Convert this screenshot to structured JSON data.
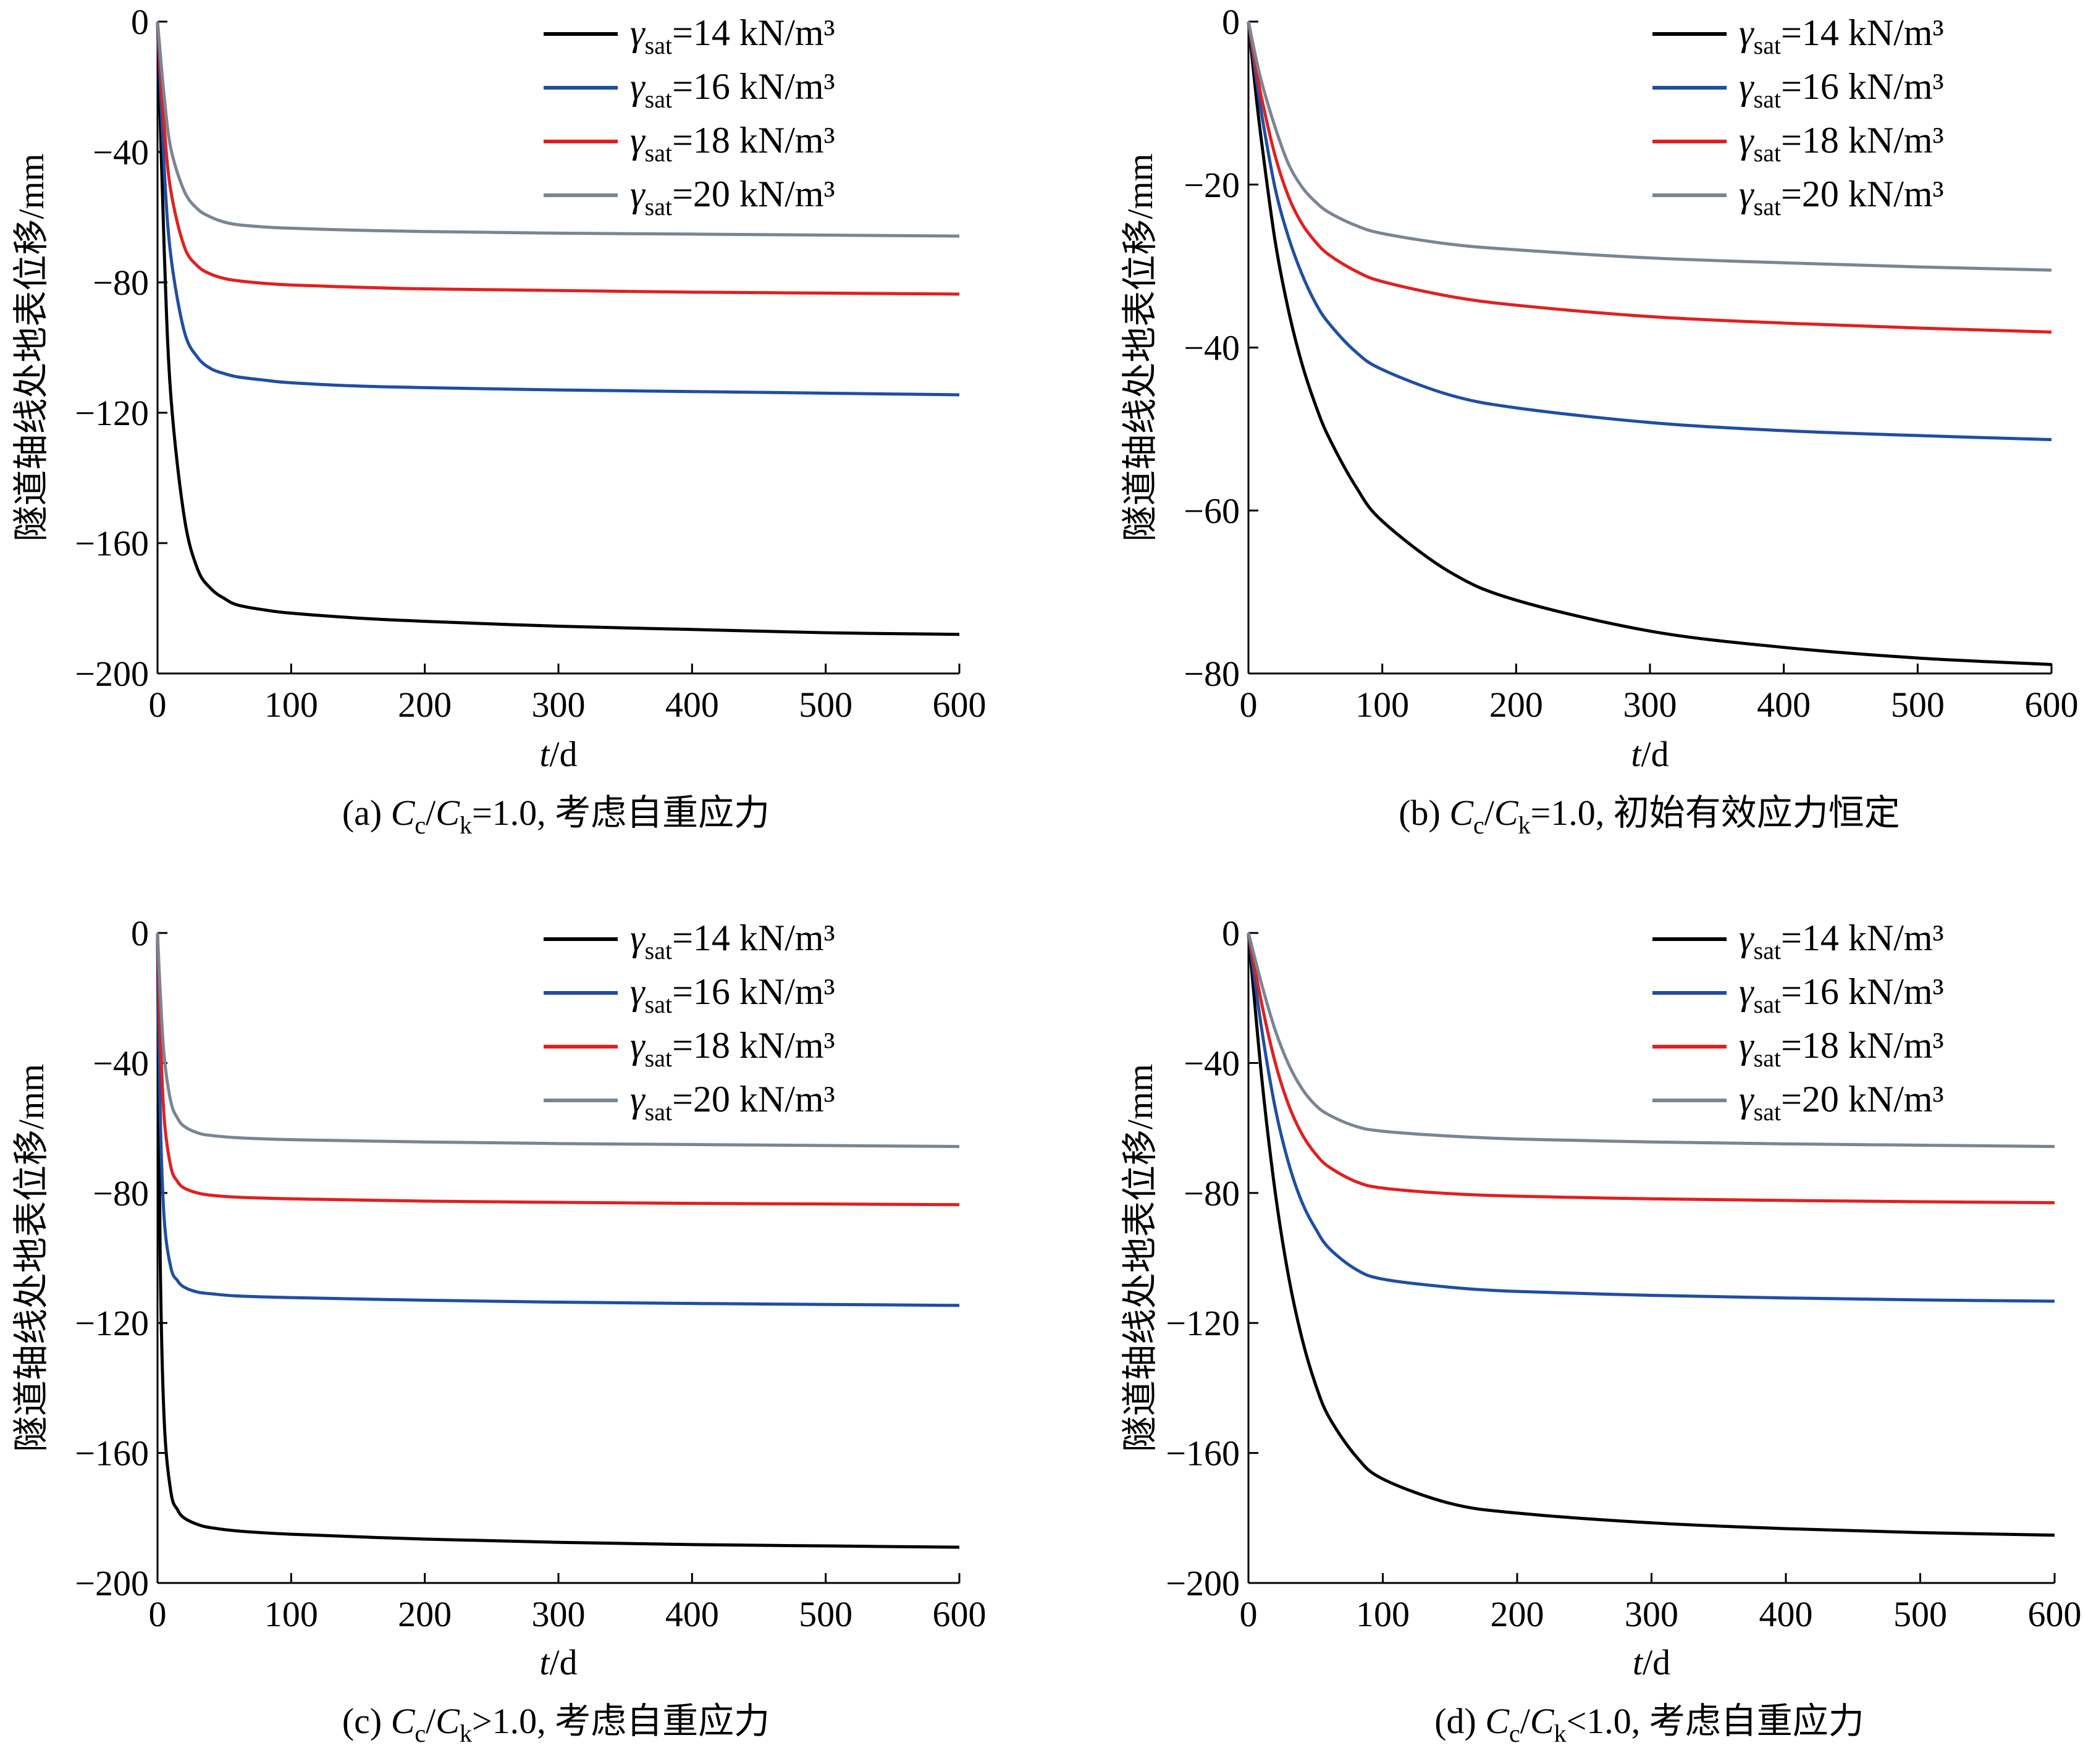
{
  "figure": {
    "title": "",
    "shared_ylabel": "隧道轴线处地表位移/mm",
    "shared_xlabel_var": "t",
    "shared_xlabel_unit": "d",
    "legend": [
      {
        "prefix": "γ",
        "subscript": "sat",
        "label": "=14 kN/m³",
        "color": "#000000"
      },
      {
        "prefix": "γ",
        "subscript": "sat",
        "label": "=16 kN/m³",
        "color": "#1f4ea3"
      },
      {
        "prefix": "γ",
        "subscript": "sat",
        "label": "=18 kN/m³",
        "color": "#e02020"
      },
      {
        "prefix": "γ",
        "subscript": "sat",
        "label": "=20 kN/m³",
        "color": "#7a8594"
      }
    ]
  },
  "chart_data": [
    {
      "type": "line",
      "panel": "a",
      "caption_prefix": "(a)",
      "caption_ratio": "=1.0,",
      "caption_text": "考虑自重应力",
      "xlabel": "t/d",
      "ylabel": "隧道轴线处地表位移/mm",
      "xlim": [
        0,
        600
      ],
      "ylim": [
        -200,
        0
      ],
      "xticks": [
        0,
        100,
        200,
        300,
        400,
        500,
        600
      ],
      "yticks": [
        0,
        -40,
        -80,
        -120,
        -160,
        -200
      ],
      "ytick_labels": [
        "0",
        "−40",
        "−80",
        "−120",
        "−160",
        "−200"
      ],
      "legend_position": "top-right",
      "grid": false,
      "x": [
        0,
        5,
        10,
        20,
        30,
        40,
        50,
        60,
        80,
        100,
        150,
        200,
        300,
        400,
        500,
        600
      ],
      "series": [
        {
          "name": "γsat=14 kN/m³",
          "color": "#000000",
          "values": [
            0,
            -70,
            -115,
            -152,
            -168,
            -174,
            -177,
            -179,
            -180.5,
            -181.5,
            -183,
            -184,
            -185.5,
            -186.5,
            -187.5,
            -188
          ]
        },
        {
          "name": "γsat=16 kN/m³",
          "color": "#1f4ea3",
          "values": [
            0,
            -45,
            -72,
            -95,
            -103,
            -106.5,
            -108,
            -109,
            -110,
            -110.8,
            -111.8,
            -112.3,
            -113,
            -113.5,
            -114,
            -114.5
          ]
        },
        {
          "name": "γsat=18 kN/m³",
          "color": "#e02020",
          "values": [
            0,
            -32,
            -52,
            -69,
            -75,
            -77.5,
            -78.8,
            -79.5,
            -80.3,
            -80.8,
            -81.5,
            -82,
            -82.5,
            -83,
            -83.3,
            -83.6
          ]
        },
        {
          "name": "γsat=20 kN/m³",
          "color": "#7a8594",
          "values": [
            0,
            -23,
            -39,
            -52,
            -57.5,
            -60,
            -61.5,
            -62.3,
            -63,
            -63.4,
            -64,
            -64.4,
            -64.9,
            -65.2,
            -65.5,
            -65.8
          ]
        }
      ]
    },
    {
      "type": "line",
      "panel": "b",
      "caption_prefix": "(b)",
      "caption_ratio": "=1.0,",
      "caption_text": "初始有效应力恒定",
      "xlabel": "t/d",
      "ylabel": "隧道轴线处地表位移/mm",
      "xlim": [
        0,
        600
      ],
      "ylim": [
        -80,
        0
      ],
      "xticks": [
        0,
        100,
        200,
        300,
        400,
        500,
        600
      ],
      "yticks": [
        0,
        -20,
        -40,
        -60,
        -80
      ],
      "ytick_labels": [
        "0",
        "−20",
        "−40",
        "−60",
        "−80"
      ],
      "legend_position": "top-right",
      "grid": false,
      "x": [
        0,
        5,
        10,
        20,
        30,
        40,
        50,
        60,
        80,
        100,
        150,
        200,
        300,
        400,
        500,
        600
      ],
      "series": [
        {
          "name": "γsat=14 kN/m³",
          "color": "#000000",
          "values": [
            0,
            -8,
            -15,
            -27,
            -35.5,
            -42,
            -47,
            -51,
            -57,
            -61.3,
            -67.5,
            -71,
            -74.8,
            -76.8,
            -78.1,
            -78.9
          ]
        },
        {
          "name": "γsat=16 kN/m³",
          "color": "#1f4ea3",
          "values": [
            0,
            -6,
            -11.5,
            -20.5,
            -26.5,
            -31,
            -34.5,
            -37,
            -40.5,
            -42.7,
            -45.8,
            -47.4,
            -49.2,
            -50.2,
            -50.8,
            -51.3
          ]
        },
        {
          "name": "γsat=18 kN/m³",
          "color": "#e02020",
          "values": [
            0,
            -5,
            -9.5,
            -16.5,
            -21.5,
            -24.8,
            -27,
            -28.6,
            -30.6,
            -31.9,
            -33.7,
            -34.8,
            -36.2,
            -37,
            -37.6,
            -38.1
          ]
        },
        {
          "name": "γsat=20 kN/m³",
          "color": "#7a8594",
          "values": [
            0,
            -4,
            -7.5,
            -13,
            -17.5,
            -20.3,
            -22.1,
            -23.4,
            -25,
            -26,
            -27.3,
            -28,
            -29,
            -29.6,
            -30.1,
            -30.5
          ]
        }
      ]
    },
    {
      "type": "line",
      "panel": "c",
      "caption_prefix": "(c)",
      "caption_ratio": ">1.0,",
      "caption_text": "考虑自重应力",
      "xlabel": "t/d",
      "ylabel": "隧道轴线处地表位移/mm",
      "xlim": [
        0,
        600
      ],
      "ylim": [
        -200,
        0
      ],
      "xticks": [
        0,
        100,
        200,
        300,
        400,
        500,
        600
      ],
      "yticks": [
        0,
        -40,
        -80,
        -120,
        -160,
        -200
      ],
      "ytick_labels": [
        "0",
        "−40",
        "−80",
        "−120",
        "−160",
        "−200"
      ],
      "legend_position": "top-right",
      "grid": false,
      "x": [
        0,
        2,
        5,
        10,
        15,
        20,
        30,
        40,
        60,
        100,
        200,
        300,
        400,
        500,
        600
      ],
      "series": [
        {
          "name": "γsat=14 kN/m³",
          "color": "#000000",
          "values": [
            0,
            -100,
            -150,
            -172,
            -177.5,
            -180,
            -182,
            -183,
            -184,
            -185,
            -186.5,
            -187.5,
            -188.2,
            -188.6,
            -189
          ]
        },
        {
          "name": "γsat=16 kN/m³",
          "color": "#1f4ea3",
          "values": [
            0,
            -55,
            -88,
            -103,
            -107,
            -109,
            -110.5,
            -111,
            -111.7,
            -112.2,
            -113,
            -113.6,
            -114,
            -114.3,
            -114.6
          ]
        },
        {
          "name": "γsat=18 kN/m³",
          "color": "#e02020",
          "values": [
            0,
            -30,
            -57,
            -72,
            -76.5,
            -78.5,
            -80,
            -80.7,
            -81.3,
            -81.8,
            -82.5,
            -82.9,
            -83.2,
            -83.4,
            -83.6
          ]
        },
        {
          "name": "γsat=20 kN/m³",
          "color": "#7a8594",
          "values": [
            0,
            -18,
            -38,
            -52,
            -57,
            -59.5,
            -61.5,
            -62.3,
            -63,
            -63.6,
            -64.3,
            -64.8,
            -65.1,
            -65.4,
            -65.7
          ]
        }
      ]
    },
    {
      "type": "line",
      "panel": "d",
      "caption_prefix": "(d)",
      "caption_ratio": "<1.0,",
      "caption_text": "考虑自重应力",
      "xlabel": "t/d",
      "ylabel": "隧道轴线处地表位移/mm",
      "xlim": [
        0,
        600
      ],
      "ylim": [
        -200,
        0
      ],
      "xticks": [
        0,
        100,
        200,
        300,
        400,
        500,
        600
      ],
      "yticks": [
        0,
        -40,
        -80,
        -120,
        -160,
        -200
      ],
      "ytick_labels": [
        "0",
        "−40",
        "−80",
        "−120",
        "−160",
        "−200"
      ],
      "legend_position": "top-right",
      "grid": false,
      "x": [
        0,
        10,
        20,
        30,
        40,
        50,
        60,
        80,
        100,
        150,
        200,
        300,
        400,
        500,
        600
      ],
      "series": [
        {
          "name": "γsat=14 kN/m³",
          "color": "#000000",
          "values": [
            0,
            -45,
            -80,
            -106,
            -125,
            -139,
            -149,
            -161,
            -168,
            -175.5,
            -178.5,
            -181.5,
            -183.3,
            -184.5,
            -185.3
          ]
        },
        {
          "name": "γsat=16 kN/m³",
          "color": "#1f4ea3",
          "values": [
            0,
            -30,
            -54,
            -71,
            -83,
            -91,
            -97,
            -103.5,
            -106.5,
            -109,
            -110.3,
            -111.5,
            -112.3,
            -112.9,
            -113.3
          ]
        },
        {
          "name": "γsat=18 kN/m³",
          "color": "#e02020",
          "values": [
            0,
            -22,
            -40,
            -53,
            -62,
            -68,
            -72,
            -76.5,
            -78.5,
            -80.2,
            -81,
            -81.8,
            -82.3,
            -82.7,
            -83
          ]
        },
        {
          "name": "γsat=20 kN/m³",
          "color": "#7a8594",
          "values": [
            0,
            -16,
            -30,
            -40.5,
            -48,
            -53,
            -56,
            -59.5,
            -61,
            -62.5,
            -63.4,
            -64.3,
            -64.9,
            -65.3,
            -65.7
          ]
        }
      ]
    }
  ]
}
